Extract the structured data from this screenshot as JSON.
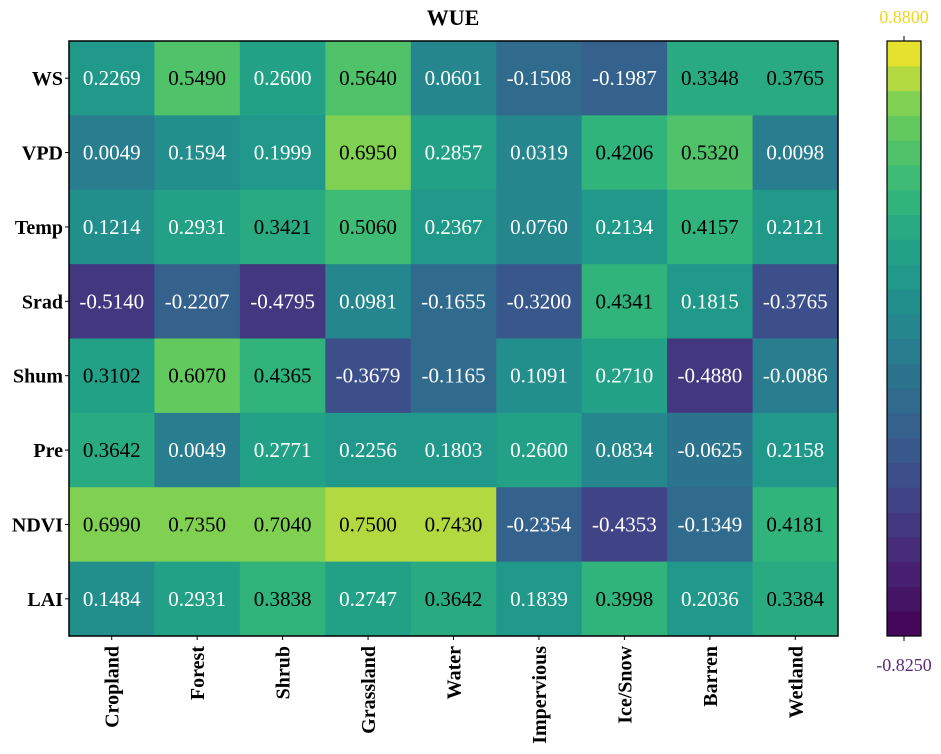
{
  "chart_data": {
    "type": "heatmap",
    "title": "WUE",
    "xlabel": "",
    "ylabel": "",
    "columns": [
      "Cropland",
      "Forest",
      "Shrub",
      "Grassland",
      "Water",
      "Impervious",
      "Ice/Snow",
      "Barren",
      "Wetland"
    ],
    "rows": [
      "WS",
      "VPD",
      "Temp",
      "Srad",
      "Shum",
      "Pre",
      "NDVI",
      "LAI"
    ],
    "values": [
      [
        "0.2269",
        "0.5490",
        "0.2600",
        "0.5640",
        "0.0601",
        "-0.1508",
        "-0.1987",
        "0.3348",
        "0.3765"
      ],
      [
        "0.0049",
        "0.1594",
        "0.1999",
        "0.6950",
        "0.2857",
        "0.0319",
        "0.4206",
        "0.5320",
        "0.0098"
      ],
      [
        "0.1214",
        "0.2931",
        "0.3421",
        "0.5060",
        "0.2367",
        "0.0760",
        "0.2134",
        "0.4157",
        "0.2121"
      ],
      [
        "-0.5140",
        "-0.2207",
        "-0.4795",
        "0.0981",
        "-0.1655",
        "-0.3200",
        "0.4341",
        "0.1815",
        "-0.3765"
      ],
      [
        "0.3102",
        "0.6070",
        "0.4365",
        "-0.3679",
        "-0.1165",
        "0.1091",
        "0.2710",
        "-0.4880",
        "-0.0086"
      ],
      [
        "0.3642",
        "0.0049",
        "0.2771",
        "0.2256",
        "0.1803",
        "0.2600",
        "0.0834",
        "-0.0625",
        "0.2158"
      ],
      [
        "0.6990",
        "0.7350",
        "0.7040",
        "0.7500",
        "0.7430",
        "-0.2354",
        "-0.4353",
        "-0.1349",
        "0.4181"
      ],
      [
        "0.1484",
        "0.2931",
        "0.3838",
        "0.2747",
        "0.3642",
        "0.1839",
        "0.3998",
        "0.2036",
        "0.3384"
      ]
    ],
    "colorbar": {
      "max_label": "0.8800",
      "min_label": "-0.8250",
      "max": 0.88,
      "min": -0.825,
      "colormap": "viridis",
      "steps": 24
    },
    "colors": {
      "max_label": "#f2d41c",
      "min_label": "#5b2b7a",
      "text_dark": "#000000",
      "text_light": "#ffffff"
    },
    "text_threshold": 0.3
  }
}
